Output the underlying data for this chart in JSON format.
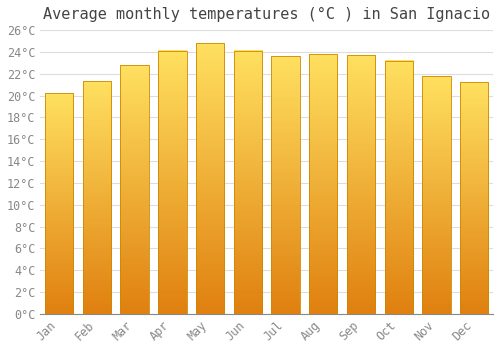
{
  "title": "Average monthly temperatures (°C ) in San Ignacio",
  "months": [
    "Jan",
    "Feb",
    "Mar",
    "Apr",
    "May",
    "Jun",
    "Jul",
    "Aug",
    "Sep",
    "Oct",
    "Nov",
    "Dec"
  ],
  "values": [
    20.2,
    21.3,
    22.8,
    24.1,
    24.8,
    24.1,
    23.6,
    23.8,
    23.7,
    23.2,
    21.8,
    21.2
  ],
  "bar_color_top": "#FFD966",
  "bar_color_bottom": "#E08010",
  "bar_edge_color": "#CC8800",
  "background_color": "#ffffff",
  "grid_color": "#dddddd",
  "ylim": [
    0,
    26
  ],
  "ytick_step": 2,
  "title_fontsize": 11,
  "tick_fontsize": 8.5,
  "title_color": "#444444",
  "tick_color": "#888888",
  "font_family": "monospace"
}
